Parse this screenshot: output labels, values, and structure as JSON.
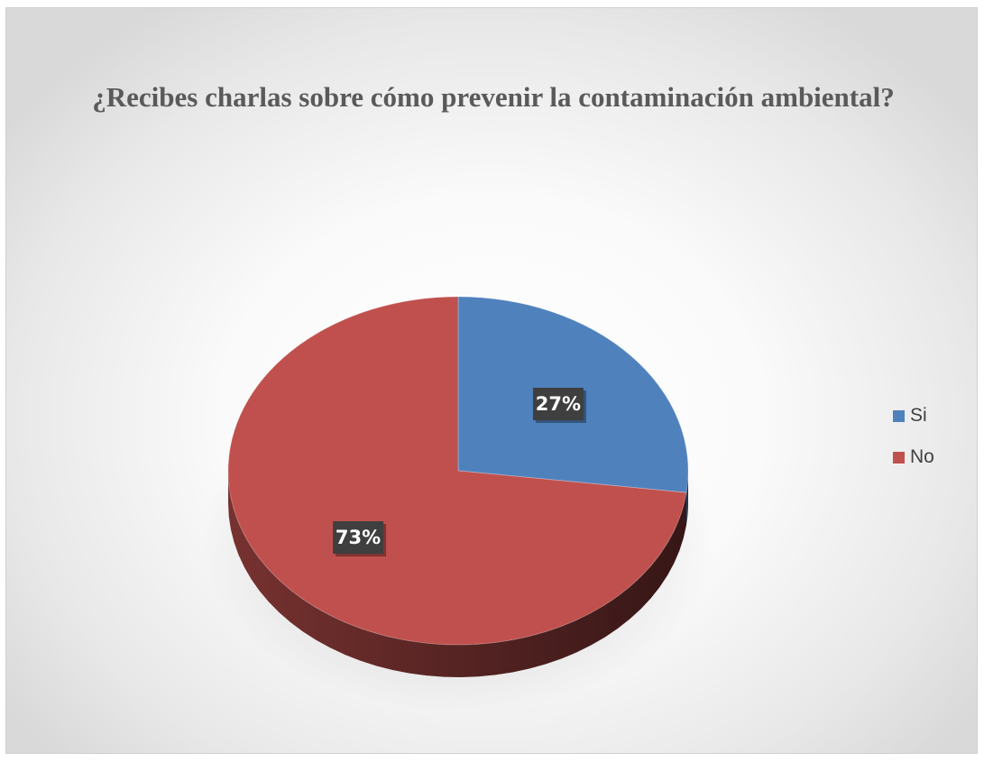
{
  "chart_data": {
    "type": "pie",
    "title": "¿Recibes charlas sobre cómo prevenir la contaminación ambiental?",
    "categories": [
      "Si",
      "No"
    ],
    "values": [
      27,
      73
    ],
    "labels": [
      "27%",
      "73%"
    ],
    "colors": [
      "#4f81bd",
      "#c0504d"
    ],
    "legend_position": "right",
    "style": "3d"
  }
}
